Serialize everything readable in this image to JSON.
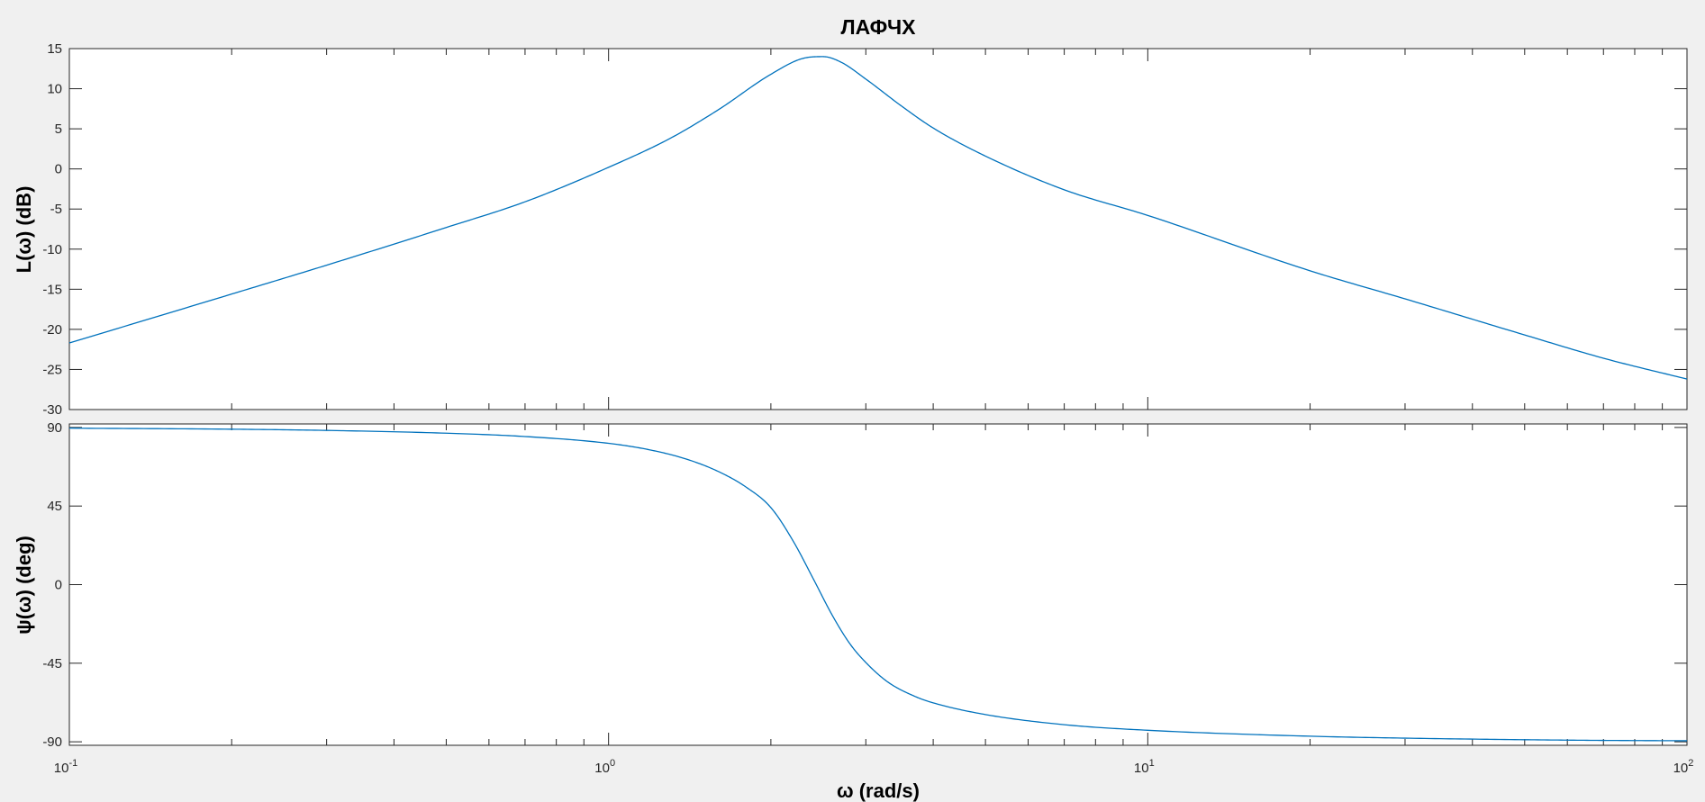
{
  "figure": {
    "background": "#f0f0f0",
    "axes_background": "#ffffff",
    "axes_color": "#262626",
    "line_color": "#0072bd"
  },
  "chart_data": [
    {
      "id": "magnitude",
      "type": "line",
      "title": "ЛАФЧХ",
      "ylabel": "L(ω) (dB)",
      "xlabel": "",
      "xscale": "log",
      "xlim": [
        0.1,
        100
      ],
      "ylim": [
        -30,
        15
      ],
      "yticks": [
        15,
        10,
        5,
        0,
        -5,
        -10,
        -15,
        -20,
        -25,
        -30
      ],
      "grid": false,
      "series": [
        {
          "x": [
            0.1,
            0.2,
            0.3,
            0.5,
            0.7,
            1.0,
            1.3,
            1.6,
            2.0,
            2.3,
            2.5,
            2.7,
            3.0,
            3.5,
            4.0,
            5.0,
            7.0,
            10,
            20,
            30,
            50,
            70,
            100
          ],
          "values": [
            -21.7,
            -15.6,
            -12.0,
            -7.3,
            -4.1,
            0.2,
            3.8,
            7.4,
            11.8,
            13.8,
            14.0,
            13.3,
            11.2,
            7.8,
            5.1,
            1.6,
            -2.6,
            -5.8,
            -12.7,
            -16.2,
            -20.7,
            -23.6,
            -26.2
          ]
        }
      ]
    },
    {
      "id": "phase",
      "type": "line",
      "title": "",
      "ylabel": "ψ(ω) (deg)",
      "xlabel": "ω  (rad/s)",
      "xscale": "log",
      "xlim": [
        0.1,
        100
      ],
      "ylim": [
        -92,
        92
      ],
      "yticks": [
        90,
        45,
        0,
        -45,
        -90
      ],
      "xticks": [
        "10^-1",
        "10^0",
        "10^1",
        "10^2"
      ],
      "grid": false,
      "series": [
        {
          "x": [
            0.1,
            0.2,
            0.3,
            0.5,
            0.7,
            1.0,
            1.2,
            1.4,
            1.6,
            1.8,
            2.0,
            2.2,
            2.4,
            2.6,
            2.8,
            3.0,
            3.3,
            3.7,
            4.0,
            5.0,
            7.0,
            10,
            20,
            30,
            50,
            70,
            100
          ],
          "values": [
            89.6,
            89.0,
            88.3,
            86.7,
            84.8,
            80.9,
            77.0,
            71.7,
            64.7,
            55.8,
            44.1,
            24.9,
            3.0,
            -17.6,
            -33.7,
            -44.6,
            -55.9,
            -64.0,
            -67.7,
            -74.4,
            -80.2,
            -83.4,
            -86.8,
            -87.9,
            -88.8,
            -89.2,
            -89.4
          ]
        }
      ]
    }
  ]
}
